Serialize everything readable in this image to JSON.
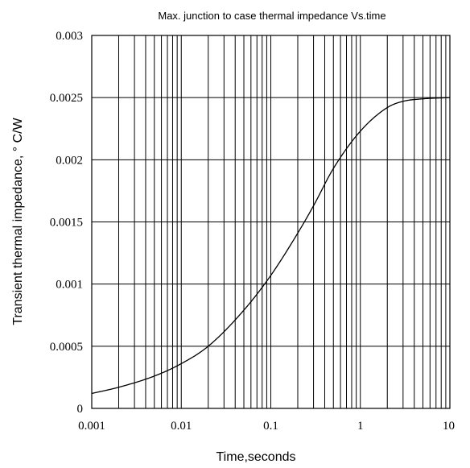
{
  "chart_data": {
    "type": "line",
    "title": "Max. junction to case thermal impedance Vs.time",
    "xlabel": "Time,seconds",
    "ylabel": "Transient thermal impedance, ° C/W",
    "x_scale": "log",
    "xlim": [
      0.001,
      10
    ],
    "ylim": [
      0,
      0.003
    ],
    "x_ticks": [
      "0.001",
      "0.01",
      "0.1",
      "1",
      "10"
    ],
    "y_ticks": [
      "0",
      "0.0005",
      "0.001",
      "0.0015",
      "0.002",
      "0.0025",
      "0.003"
    ],
    "grid": true,
    "series": [
      {
        "x": [
          0.001,
          0.002,
          0.005,
          0.01,
          0.02,
          0.05,
          0.1,
          0.2,
          0.3,
          0.5,
          1,
          2,
          3,
          5,
          10
        ],
        "y": [
          0.00012,
          0.00017,
          0.00026,
          0.00036,
          0.0005,
          0.00079,
          0.00107,
          0.00141,
          0.00163,
          0.00193,
          0.00223,
          0.00242,
          0.00247,
          0.00249,
          0.0025
        ]
      }
    ]
  }
}
